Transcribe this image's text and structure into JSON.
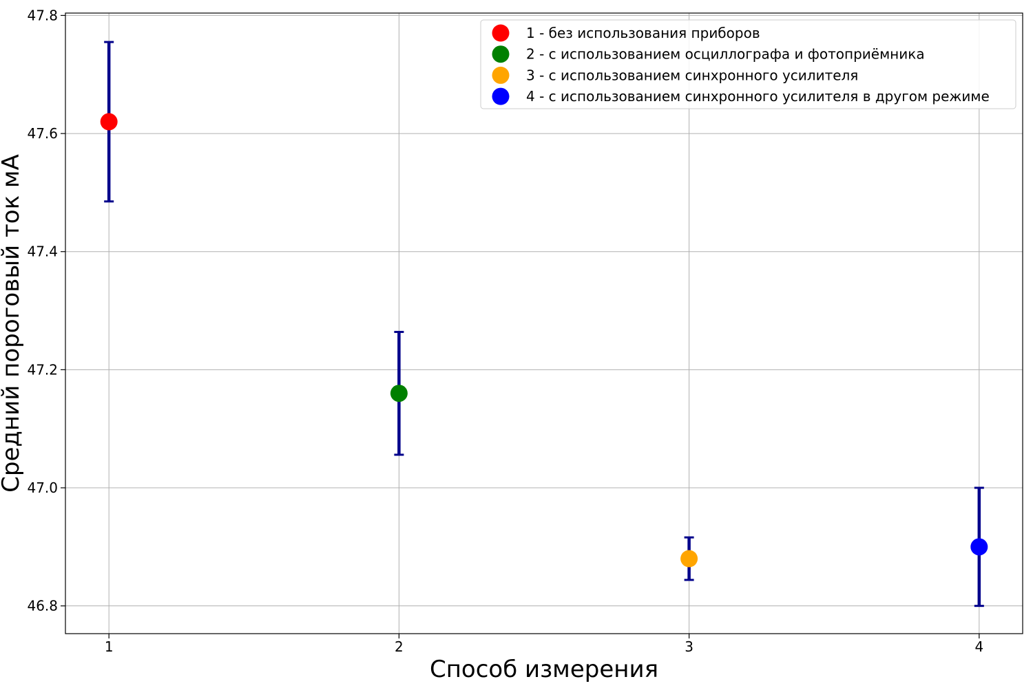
{
  "chart_data": {
    "type": "scatter",
    "title": "",
    "xlabel": "Способ измерения",
    "ylabel": "Средний пороговый ток мА",
    "xlim": [
      0.85,
      4.15
    ],
    "ylim": [
      46.753,
      47.804
    ],
    "x_ticks": [
      1,
      2,
      3,
      4
    ],
    "y_ticks": [
      46.8,
      47.0,
      47.2,
      47.4,
      47.6,
      47.8
    ],
    "x_tick_labels": [
      "1",
      "2",
      "3",
      "4"
    ],
    "y_tick_labels": [
      "46.8",
      "47.0",
      "47.2",
      "47.4",
      "47.6",
      "47.8"
    ],
    "grid": true,
    "legend_position": "top-right",
    "errorbar_color": "#00008b",
    "series": [
      {
        "name": "1 - без использования приборов",
        "color": "#ff0000",
        "x": 1,
        "y": 47.62,
        "y_low": 47.485,
        "y_high": 47.755
      },
      {
        "name": "2 - с использованием осциллографа и фотоприёмника",
        "color": "#008000",
        "x": 2,
        "y": 47.16,
        "y_low": 47.056,
        "y_high": 47.264
      },
      {
        "name": "3 - с использованием синхронного усилителя",
        "color": "#ffa500",
        "x": 3,
        "y": 46.88,
        "y_low": 46.844,
        "y_high": 46.916
      },
      {
        "name": "4 - с использованием синхронного усилителя в другом режиме",
        "color": "#0000ff",
        "x": 4,
        "y": 46.9,
        "y_low": 46.8,
        "y_high": 47.0
      }
    ]
  }
}
